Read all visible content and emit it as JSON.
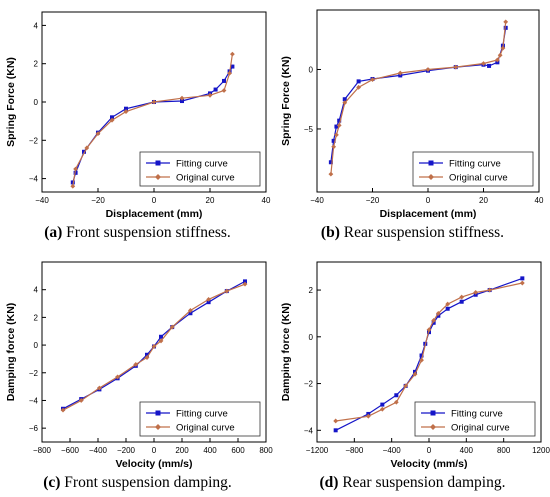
{
  "colors": {
    "fitting": "#1515c8",
    "original": "#c0704a",
    "axis": "#000000"
  },
  "charts": [
    {
      "caption_letter": "(a)",
      "caption_text": " Front suspension stiffness.",
      "chart_data": {
        "type": "line",
        "xlabel": "Displacement (mm)",
        "ylabel": "Spring Force (KN)",
        "xlim": [
          -40,
          40
        ],
        "ylim": [
          -4.7,
          4.7
        ],
        "xticks": [
          -40,
          -20,
          0,
          20,
          40
        ],
        "yticks": [
          -4,
          -2,
          0,
          2,
          4
        ],
        "legend_position": "bottom-right",
        "grid": false,
        "series": [
          {
            "name": "Fitting curve",
            "marker": "square",
            "x": [
              -29,
              -28,
              -25,
              -20,
              -15,
              -10,
              0,
              10,
              20,
              22,
              25,
              27,
              28
            ],
            "y": [
              -4.2,
              -3.7,
              -2.6,
              -1.6,
              -0.8,
              -0.35,
              0.0,
              0.05,
              0.45,
              0.65,
              1.1,
              1.6,
              1.85
            ]
          },
          {
            "name": "Original curve",
            "marker": "diamond",
            "x": [
              -29,
              -28,
              -24,
              -20,
              -15,
              -10,
              0,
              10,
              20,
              25,
              27,
              28
            ],
            "y": [
              -4.4,
              -3.5,
              -2.4,
              -1.65,
              -0.95,
              -0.5,
              0.0,
              0.2,
              0.35,
              0.6,
              1.5,
              2.5
            ]
          }
        ]
      }
    },
    {
      "caption_letter": "(b)",
      "caption_text": " Rear suspension stiffness.",
      "chart_data": {
        "type": "line",
        "xlabel": "Displacement (mm)",
        "ylabel": "Spring Force (KN)",
        "xlim": [
          -40,
          40
        ],
        "ylim": [
          -10.3,
          5
        ],
        "xticks": [
          -40,
          -20,
          0,
          20,
          40
        ],
        "yticks": [
          -5,
          0
        ],
        "legend_position": "bottom-right",
        "grid": false,
        "series": [
          {
            "name": "Fitting curve",
            "marker": "square",
            "x": [
              -35,
              -34,
              -33,
              -32,
              -30,
              -25,
              -20,
              -10,
              0,
              10,
              20,
              22,
              25,
              27,
              28
            ],
            "y": [
              -7.8,
              -6.0,
              -4.8,
              -4.3,
              -2.5,
              -1.0,
              -0.8,
              -0.5,
              -0.1,
              0.2,
              0.4,
              0.3,
              0.6,
              2.0,
              3.5
            ]
          },
          {
            "name": "Original curve",
            "marker": "diamond",
            "x": [
              -35,
              -34,
              -33,
              -32,
              -30,
              -25,
              -20,
              -10,
              0,
              10,
              20,
              25,
              26,
              27,
              28
            ],
            "y": [
              -8.8,
              -6.5,
              -5.5,
              -4.7,
              -2.8,
              -1.5,
              -0.85,
              -0.3,
              0.0,
              0.2,
              0.5,
              0.8,
              1.2,
              1.8,
              4.0
            ]
          }
        ]
      }
    },
    {
      "caption_letter": "(c)",
      "caption_text": " Front suspension damping.",
      "chart_data": {
        "type": "line",
        "xlabel": "Velocity (mm/s)",
        "ylabel": "Damping force (KN)",
        "xlim": [
          -800,
          800
        ],
        "ylim": [
          -7,
          6
        ],
        "xticks": [
          -800,
          -600,
          -400,
          -200,
          0,
          200,
          400,
          600,
          800
        ],
        "yticks": [
          -6,
          -4,
          -2,
          0,
          2,
          4
        ],
        "legend_position": "bottom-right",
        "grid": false,
        "series": [
          {
            "name": "Fitting curve",
            "marker": "square",
            "x": [
              -650,
              -520,
              -390,
              -260,
              -130,
              -50,
              0,
              50,
              130,
              260,
              390,
              520,
              650
            ],
            "y": [
              -4.6,
              -3.9,
              -3.2,
              -2.4,
              -1.5,
              -0.7,
              -0.1,
              0.6,
              1.3,
              2.3,
              3.1,
              3.9,
              4.6
            ]
          },
          {
            "name": "Original curve",
            "marker": "diamond",
            "x": [
              -650,
              -520,
              -390,
              -260,
              -130,
              -50,
              0,
              50,
              130,
              260,
              390,
              520,
              650
            ],
            "y": [
              -4.7,
              -4.0,
              -3.1,
              -2.3,
              -1.4,
              -0.9,
              -0.1,
              0.3,
              1.3,
              2.5,
              3.3,
              3.9,
              4.4
            ]
          }
        ]
      }
    },
    {
      "caption_letter": "(d)",
      "caption_text": " Rear suspension damping.",
      "chart_data": {
        "type": "line",
        "xlabel": "Velocity (mm/s)",
        "ylabel": "Damping force (KN)",
        "xlim": [
          -1200,
          1200
        ],
        "ylim": [
          -4.5,
          3.2
        ],
        "xticks": [
          -1200,
          -800,
          -400,
          0,
          400,
          800,
          1200
        ],
        "yticks": [
          -4,
          -2,
          0,
          2
        ],
        "legend_position": "bottom-right",
        "grid": false,
        "series": [
          {
            "name": "Fitting curve",
            "marker": "square",
            "x": [
              -1000,
              -650,
              -500,
              -350,
              -250,
              -150,
              -80,
              -40,
              0,
              50,
              100,
              200,
              350,
              500,
              650,
              1000
            ],
            "y": [
              -4.0,
              -3.3,
              -2.9,
              -2.5,
              -2.1,
              -1.5,
              -0.8,
              -0.3,
              0.2,
              0.6,
              0.9,
              1.2,
              1.5,
              1.8,
              2.0,
              2.5
            ]
          },
          {
            "name": "Original curve",
            "marker": "diamond",
            "x": [
              -1000,
              -650,
              -500,
              -350,
              -250,
              -150,
              -80,
              0,
              50,
              100,
              200,
              350,
              500,
              650,
              1000
            ],
            "y": [
              -3.6,
              -3.4,
              -3.1,
              -2.8,
              -2.1,
              -1.6,
              -1.0,
              0.3,
              0.7,
              1.0,
              1.4,
              1.7,
              1.9,
              2.0,
              2.3
            ]
          }
        ]
      }
    }
  ]
}
